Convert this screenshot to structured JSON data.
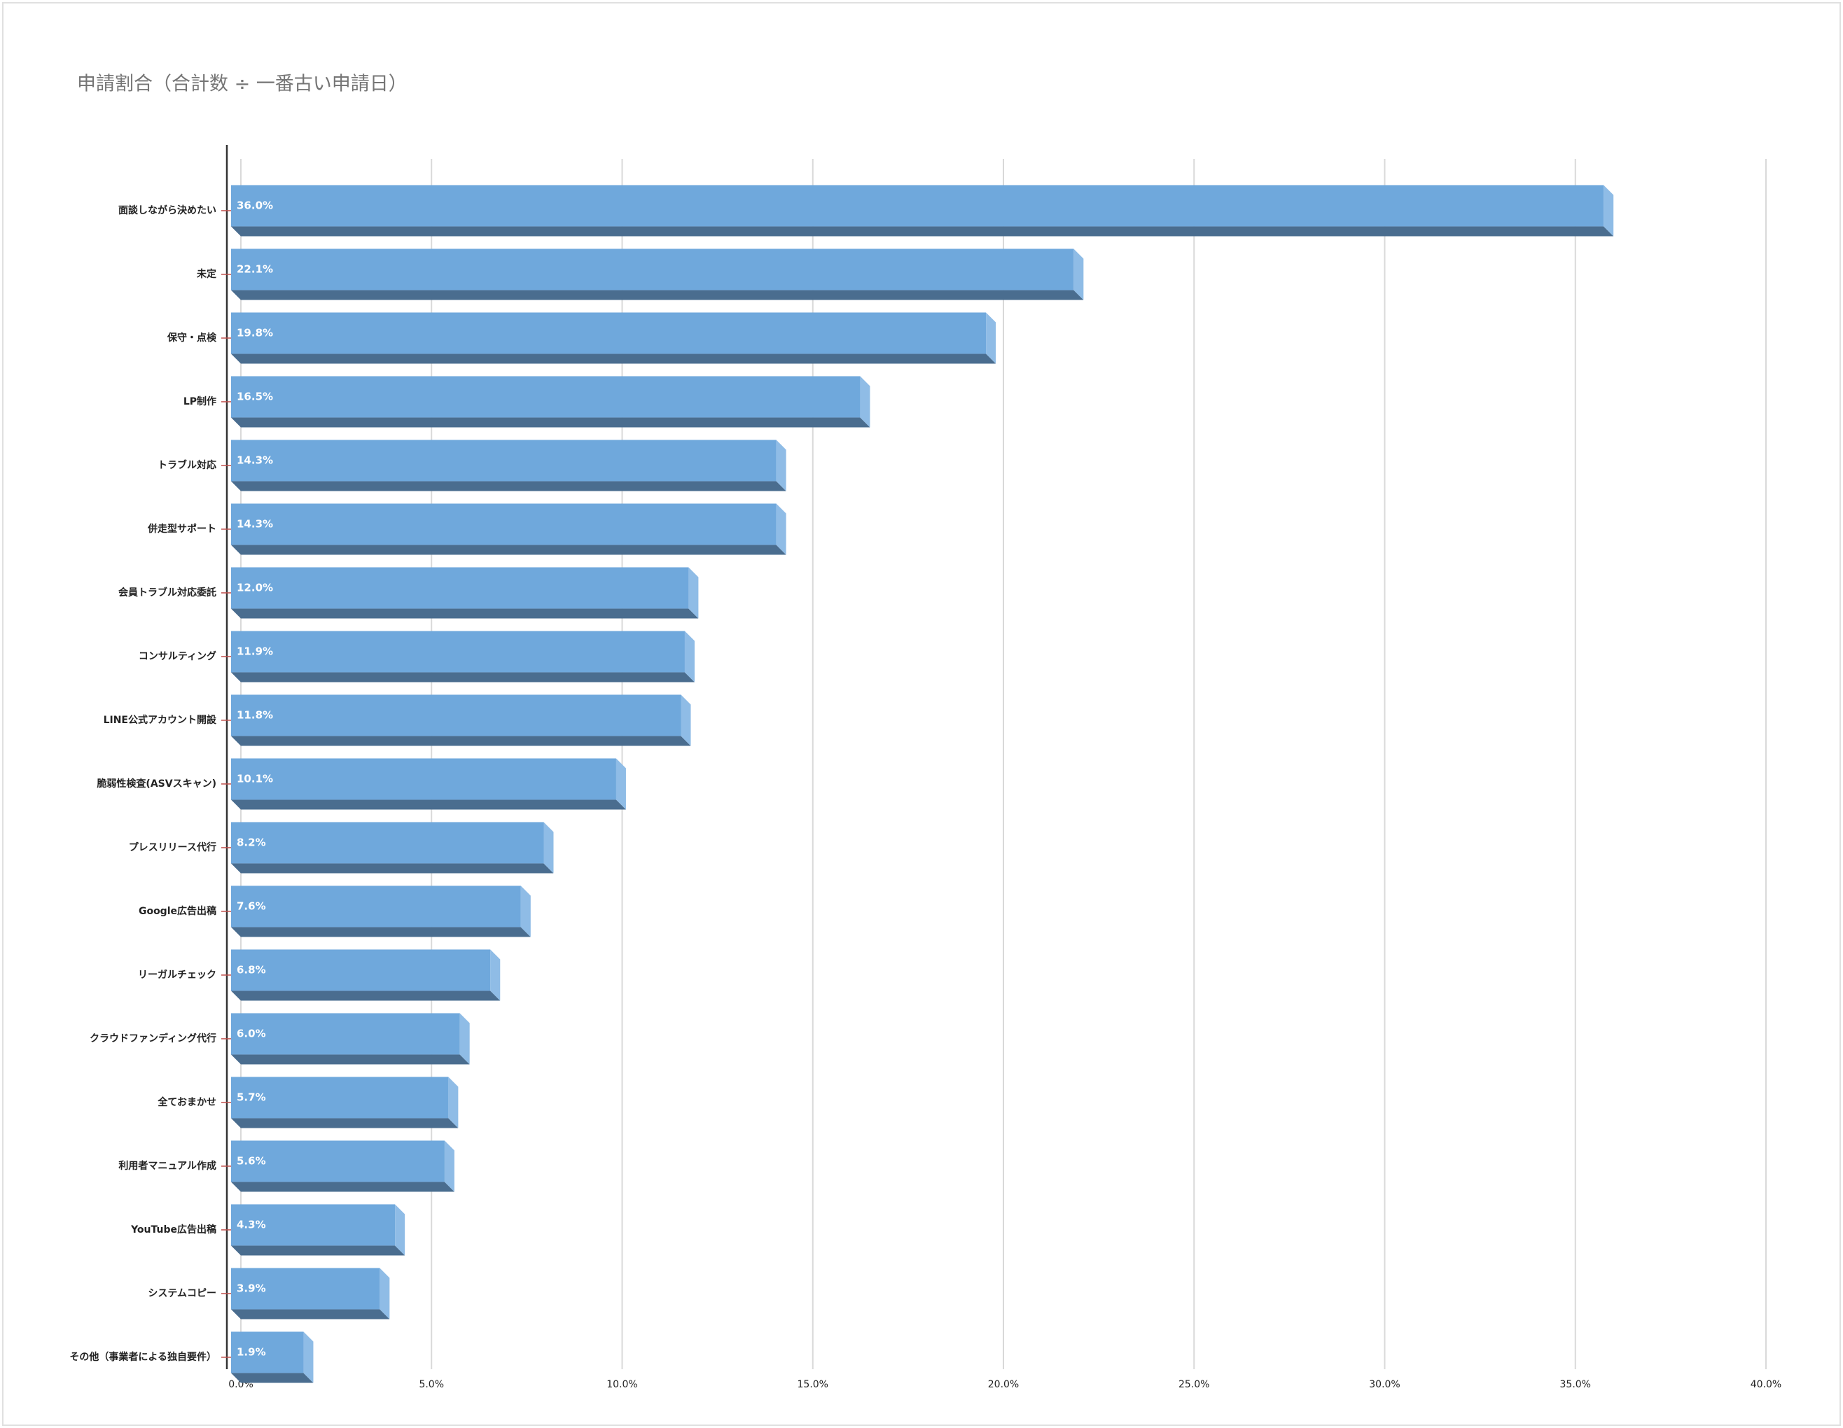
{
  "chart_data": {
    "type": "bar",
    "orientation": "horizontal",
    "title": "申請割合（合計数 ÷ 一番古い申請日）",
    "categories": [
      "面談しながら決めたい",
      "未定",
      "保守・点検",
      "LP制作",
      "トラブル対応",
      "併走型サポート",
      "会員トラブル対応委託",
      "コンサルティング",
      "LINE公式アカウント開設",
      "脆弱性検査(ASVスキャン)",
      "プレスリリース代行",
      "Google広告出稿",
      "リーガルチェック",
      "クラウドファンディング代行",
      "全ておまかせ",
      "利用者マニュアル作成",
      "YouTube広告出稿",
      "システムコピー",
      "その他（事業者による独自要件）"
    ],
    "values": [
      36.0,
      22.1,
      19.8,
      16.5,
      14.3,
      14.3,
      12.0,
      11.9,
      11.8,
      10.1,
      8.2,
      7.6,
      6.8,
      6.0,
      5.7,
      5.6,
      4.3,
      3.9,
      1.9
    ],
    "value_labels": [
      "36.0%",
      "22.1%",
      "19.8%",
      "16.5%",
      "14.3%",
      "14.3%",
      "12.0%",
      "11.9%",
      "11.8%",
      "10.1%",
      "8.2%",
      "7.6%",
      "6.8%",
      "6.0%",
      "5.7%",
      "5.6%",
      "4.3%",
      "3.9%",
      "1.9%"
    ],
    "color": "#6fa8dc",
    "xlim": [
      0,
      40
    ],
    "xticks": [
      {
        "value": 0,
        "label": "0.0%"
      },
      {
        "value": 5,
        "label": "5.0%"
      },
      {
        "value": 10,
        "label": "10.0%"
      },
      {
        "value": 15,
        "label": "15.0%"
      },
      {
        "value": 20,
        "label": "20.0%"
      },
      {
        "value": 25,
        "label": "25.0%"
      },
      {
        "value": 30,
        "label": "30.0%"
      },
      {
        "value": 35,
        "label": "35.0%"
      },
      {
        "value": 40,
        "label": "40.0%"
      }
    ],
    "grid": true
  }
}
